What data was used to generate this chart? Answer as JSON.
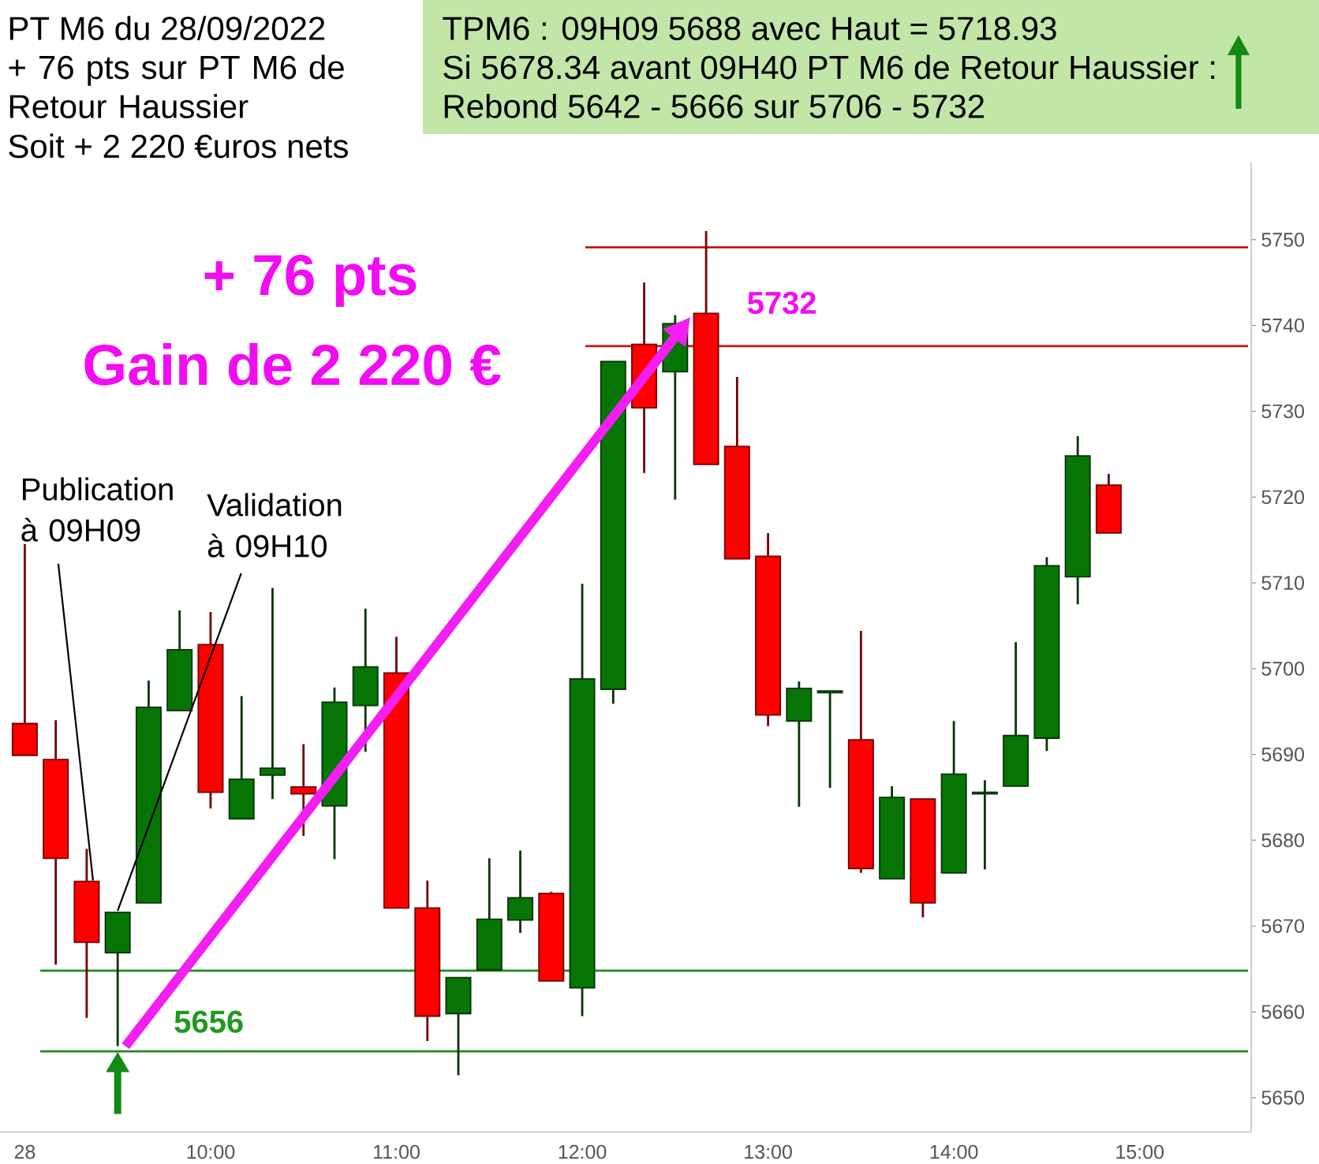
{
  "chart_data": {
    "type": "candlestick",
    "title": "PT M6 du 28/09/2022",
    "subtitle": "+ 76 pts sur PT M6 de Retour Haussier",
    "x": [
      "2022-09-28T09:00",
      "2022-09-28T09:10",
      "2022-09-28T09:20",
      "2022-09-28T09:30",
      "2022-09-28T09:40",
      "2022-09-28T09:50",
      "2022-09-28T10:00",
      "2022-09-28T10:10",
      "2022-09-28T10:20",
      "2022-09-28T10:30",
      "2022-09-28T10:40",
      "2022-09-28T10:50",
      "2022-09-28T11:00",
      "2022-09-28T11:10",
      "2022-09-28T11:20",
      "2022-09-28T11:30",
      "2022-09-28T11:40",
      "2022-09-28T11:50",
      "2022-09-28T12:00",
      "2022-09-28T12:10",
      "2022-09-28T12:20",
      "2022-09-28T12:30",
      "2022-09-28T12:40",
      "2022-09-28T12:50",
      "2022-09-28T13:00",
      "2022-09-28T13:10",
      "2022-09-28T13:20",
      "2022-09-28T13:30",
      "2022-09-28T13:40",
      "2022-09-28T13:50",
      "2022-09-28T14:00",
      "2022-09-28T14:10",
      "2022-09-28T14:20",
      "2022-09-28T14:30",
      "2022-09-28T14:40",
      "2022-09-28T14:50"
    ],
    "ohlc": [
      [
        5693.6,
        5714.5,
        5689.9,
        5689.9
      ],
      [
        5689.4,
        5694.0,
        5665.5,
        5677.9
      ],
      [
        5675.2,
        5679.0,
        5659.3,
        5668.1
      ],
      [
        5666.9,
        5671.6,
        5656.0,
        5671.6
      ],
      [
        5672.7,
        5698.6,
        5672.7,
        5695.5
      ],
      [
        5695.1,
        5706.8,
        5695.1,
        5702.2
      ],
      [
        5702.8,
        5706.6,
        5683.7,
        5685.6
      ],
      [
        5682.5,
        5696.8,
        5682.5,
        5687.1
      ],
      [
        5687.6,
        5709.4,
        5684.8,
        5688.4
      ],
      [
        5686.2,
        5691.2,
        5680.5,
        5685.4
      ],
      [
        5684.0,
        5697.8,
        5677.8,
        5696.1
      ],
      [
        5695.7,
        5707.0,
        5690.3,
        5700.2
      ],
      [
        5699.5,
        5703.7,
        5672.1,
        5672.1
      ],
      [
        5672.1,
        5675.3,
        5656.6,
        5659.5
      ],
      [
        5659.8,
        5664.0,
        5652.6,
        5664.0
      ],
      [
        5664.9,
        5677.9,
        5664.9,
        5670.8
      ],
      [
        5670.7,
        5678.8,
        5669.2,
        5673.3
      ],
      [
        5673.8,
        5674.0,
        5663.6,
        5663.6
      ],
      [
        5662.8,
        5709.9,
        5659.5,
        5698.8
      ],
      [
        5697.6,
        5735.8,
        5695.9,
        5735.8
      ],
      [
        5737.8,
        5745.0,
        5722.8,
        5730.4
      ],
      [
        5734.6,
        5741.2,
        5719.7,
        5740.2
      ],
      [
        5741.4,
        5751.0,
        5723.8,
        5723.8
      ],
      [
        5725.9,
        5734.0,
        5712.8,
        5712.8
      ],
      [
        5713.1,
        5715.8,
        5693.3,
        5694.6
      ],
      [
        5693.9,
        5698.5,
        5683.9,
        5697.7
      ],
      [
        5697.2,
        5697.4,
        5686.1,
        5697.4
      ],
      [
        5691.7,
        5704.4,
        5676.2,
        5676.7
      ],
      [
        5675.5,
        5686.3,
        5675.5,
        5685.0
      ],
      [
        5684.8,
        5684.8,
        5671.0,
        5672.7
      ],
      [
        5676.2,
        5693.9,
        5676.2,
        5687.7
      ],
      [
        5685.4,
        5687.0,
        5676.6,
        5685.6
      ],
      [
        5686.3,
        5703.1,
        5686.3,
        5692.2
      ],
      [
        5691.9,
        5713.0,
        5690.4,
        5712.0
      ],
      [
        5710.7,
        5727.1,
        5707.5,
        5724.8
      ],
      [
        5721.4,
        5722.7,
        5715.8,
        5715.8
      ]
    ],
    "colors": [
      "#ff0000",
      "#ff0000",
      "#ff0000",
      "#067506",
      "#067506",
      "#067506",
      "#ff0000",
      "#067506",
      "#067506",
      "#ff0000",
      "#067506",
      "#067506",
      "#ff0000",
      "#ff0000",
      "#067506",
      "#067506",
      "#067506",
      "#ff0000",
      "#067506",
      "#067506",
      "#ff0000",
      "#067506",
      "#ff0000",
      "#ff0000",
      "#ff0000",
      "#067506",
      "#067506",
      "#ff0000",
      "#067506",
      "#ff0000",
      "#067506",
      "#067506",
      "#067506",
      "#067506",
      "#067506",
      "#ff0000"
    ],
    "series": [
      {
        "type": "line",
        "x": [
          "2022-09-28T09:05",
          "2022-09-28T15:35"
        ],
        "values": [
          5664.8,
          5664.8
        ],
        "color": "#1e8c1e"
      },
      {
        "type": "line",
        "x": [
          "2022-09-28T09:05",
          "2022-09-28T15:35"
        ],
        "values": [
          5655.4,
          5655.4
        ],
        "color": "#1e8c1e"
      },
      {
        "type": "line",
        "x": [
          "2022-09-28T12:01",
          "2022-09-28T15:35"
        ],
        "values": [
          5749.1,
          5749.1
        ],
        "color": "#cc1010"
      },
      {
        "type": "line",
        "x": [
          "2022-09-28T12:01",
          "2022-09-28T15:35"
        ],
        "values": [
          5737.6,
          5737.6
        ],
        "color": "#cc1010"
      }
    ],
    "xlim": [
      "2022-09-28T08:52",
      "2022-09-28T15:36"
    ],
    "xticks": [
      {
        "value": "2022-09-28T09:00",
        "label": "28"
      },
      {
        "value": "2022-09-28T10:00",
        "label": "10:00"
      },
      {
        "value": "2022-09-28T11:00",
        "label": "11:00"
      },
      {
        "value": "2022-09-28T12:00",
        "label": "12:00"
      },
      {
        "value": "2022-09-28T13:00",
        "label": "13:00"
      },
      {
        "value": "2022-09-28T14:00",
        "label": "14:00"
      },
      {
        "value": "2022-09-28T15:00",
        "label": "15:00"
      }
    ],
    "ylim": [
      5646,
      5759
    ],
    "yticks": [
      5650,
      5660,
      5670,
      5680,
      5690,
      5700,
      5710,
      5720,
      5730,
      5740,
      5750
    ],
    "annotations": [
      "Soit + 2 220 €uros nets",
      "TPM6 : 09H09 5688 avec Haut = 5718.93",
      "Si 5678.34 avant 09H40 PT M6 de Retour Haussier :",
      "Rebond 5642 - 5666 sur 5706 - 5732",
      "+ 76 pts",
      "Gain de 2 220 €",
      {
        "text": "Publication à 09H09",
        "x": "2022-09-28T09:20",
        "y": 5675.2
      },
      {
        "text": "Validation à 09H10",
        "x": "2022-09-28T09:30",
        "y": 5671.6
      },
      {
        "text": "5656",
        "x": "2022-09-28T09:30",
        "y": 5656
      },
      {
        "text": "5732",
        "x": "2022-09-28T12:35",
        "y": 5741
      }
    ]
  }
}
